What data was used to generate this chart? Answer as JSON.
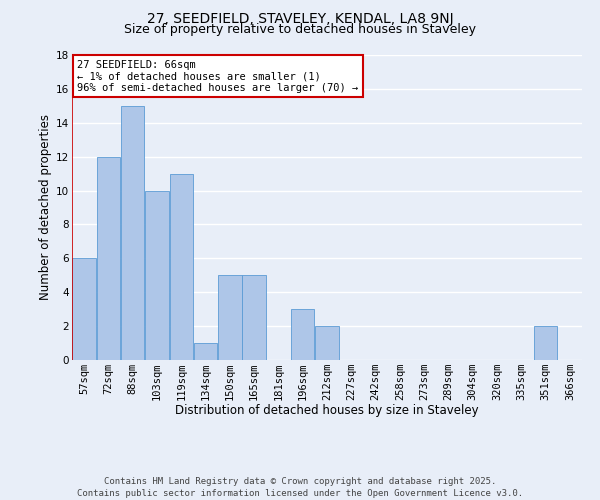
{
  "title": "27, SEEDFIELD, STAVELEY, KENDAL, LA8 9NJ",
  "subtitle": "Size of property relative to detached houses in Staveley",
  "xlabel": "Distribution of detached houses by size in Staveley",
  "ylabel": "Number of detached properties",
  "bin_labels": [
    "57sqm",
    "72sqm",
    "88sqm",
    "103sqm",
    "119sqm",
    "134sqm",
    "150sqm",
    "165sqm",
    "181sqm",
    "196sqm",
    "212sqm",
    "227sqm",
    "242sqm",
    "258sqm",
    "273sqm",
    "289sqm",
    "304sqm",
    "320sqm",
    "335sqm",
    "351sqm",
    "366sqm"
  ],
  "bin_counts": [
    6,
    12,
    15,
    10,
    11,
    1,
    5,
    5,
    0,
    3,
    2,
    0,
    0,
    0,
    0,
    0,
    0,
    0,
    0,
    2,
    0
  ],
  "bar_color": "#aec6e8",
  "bar_edge_color": "#5b9bd5",
  "background_color": "#e8eef8",
  "grid_color": "#ffffff",
  "annotation_line1": "27 SEEDFIELD: 66sqm",
  "annotation_line2": "← 1% of detached houses are smaller (1)",
  "annotation_line3": "96% of semi-detached houses are larger (70) →",
  "annotation_box_color": "#ffffff",
  "annotation_box_edge_color": "#cc0000",
  "ylim": [
    0,
    18
  ],
  "yticks": [
    0,
    2,
    4,
    6,
    8,
    10,
    12,
    14,
    16,
    18
  ],
  "footer_line1": "Contains HM Land Registry data © Crown copyright and database right 2025.",
  "footer_line2": "Contains public sector information licensed under the Open Government Licence v3.0.",
  "title_fontsize": 10,
  "subtitle_fontsize": 9,
  "axis_label_fontsize": 8.5,
  "tick_fontsize": 7.5,
  "annotation_fontsize": 7.5,
  "footer_fontsize": 6.5
}
